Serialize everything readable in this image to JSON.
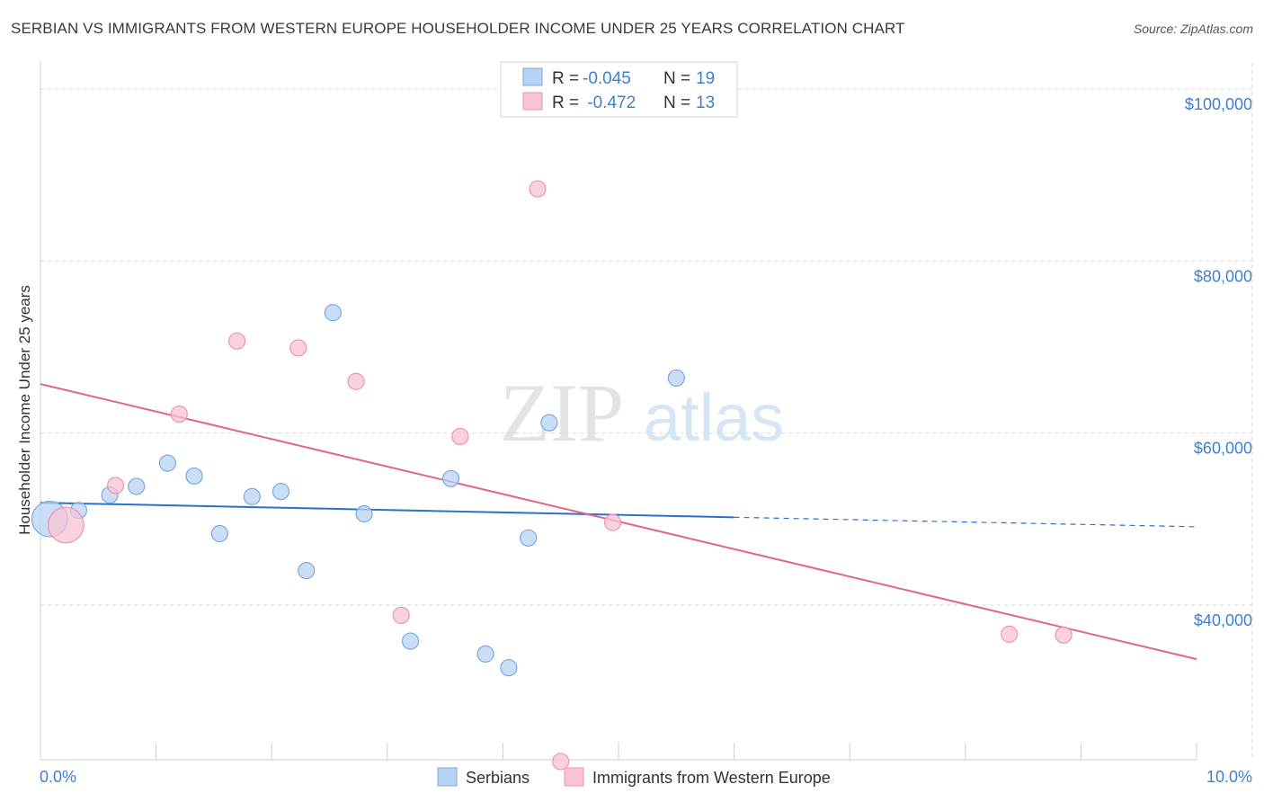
{
  "title": "SERBIAN VS IMMIGRANTS FROM WESTERN EUROPE HOUSEHOLDER INCOME UNDER 25 YEARS CORRELATION CHART",
  "source": "Source: ZipAtlas.com",
  "watermark": {
    "zip": "ZIP",
    "atlas": "atlas"
  },
  "colors": {
    "serbian_fill": "#b8d3f3",
    "serbian_stroke": "#7aa8e0",
    "serbian_line": "#2b6fd0",
    "imm_fill": "#f8c3d3",
    "imm_stroke": "#ec94b0",
    "imm_line": "#e0648e",
    "grid": "#d9d9d9",
    "tick_label": "#3f7fd0"
  },
  "legend": {
    "rows": [
      {
        "r_label": "R = ",
        "r_value": "-0.045",
        "n_label": "N = ",
        "n_value": "19"
      },
      {
        "r_label": "R = ",
        "r_value": " -0.472",
        "n_label": "N = ",
        "n_value": "13"
      }
    ]
  },
  "chart_data": {
    "type": "scatter",
    "title": "SERBIAN VS IMMIGRANTS FROM WESTERN EUROPE HOUSEHOLDER INCOME UNDER 25 YEARS CORRELATION CHART",
    "xlabel": "",
    "ylabel": "Householder Income Under 25 years",
    "xlim": [
      0,
      10
    ],
    "ylim": [
      22000,
      102000
    ],
    "x_tick_labels": [
      "0.0%",
      "10.0%"
    ],
    "y_ticks": [
      40000,
      60000,
      80000,
      100000
    ],
    "y_tick_labels": [
      "$40,000",
      "$60,000",
      "$80,000",
      "$100,000"
    ],
    "grid": true,
    "legend_position": "top-center",
    "series": [
      {
        "name": "Serbians",
        "r": -0.045,
        "n": 19,
        "points": [
          [
            0.08,
            50000,
            2.2
          ],
          [
            0.33,
            51000,
            1
          ],
          [
            0.6,
            52800,
            1
          ],
          [
            0.83,
            53800,
            1
          ],
          [
            1.1,
            56500,
            1
          ],
          [
            1.33,
            55000,
            1
          ],
          [
            1.55,
            48300,
            1
          ],
          [
            1.83,
            52600,
            1
          ],
          [
            2.08,
            53200,
            1
          ],
          [
            2.3,
            44000,
            1
          ],
          [
            2.53,
            74000,
            1
          ],
          [
            2.8,
            50600,
            1
          ],
          [
            3.2,
            35800,
            1
          ],
          [
            3.55,
            54700,
            1
          ],
          [
            3.85,
            34300,
            1
          ],
          [
            4.05,
            32700,
            1
          ],
          [
            4.22,
            47800,
            1
          ],
          [
            4.4,
            61200,
            1
          ],
          [
            5.5,
            66400,
            1
          ]
        ],
        "trend": {
          "x0": 0.0,
          "y0": 51900,
          "x1": 6.0,
          "y1": 50200,
          "x_dash_end": 10.0,
          "y_dash_end": 49100
        }
      },
      {
        "name": "Immigrants from Western Europe",
        "r": -0.472,
        "n": 13,
        "points": [
          [
            0.22,
            49300,
            2.2
          ],
          [
            0.65,
            53900,
            1
          ],
          [
            1.2,
            62200,
            1
          ],
          [
            1.7,
            70700,
            1
          ],
          [
            2.23,
            69900,
            1
          ],
          [
            2.73,
            66000,
            1
          ],
          [
            3.12,
            38800,
            1
          ],
          [
            3.63,
            59600,
            1
          ],
          [
            4.3,
            88400,
            1
          ],
          [
            4.5,
            21800,
            1
          ],
          [
            4.95,
            49600,
            1
          ],
          [
            8.38,
            36600,
            1
          ],
          [
            8.85,
            36500,
            1
          ]
        ],
        "trend": {
          "x0": 0.0,
          "y0": 65700,
          "x1": 10.0,
          "y1": 33700
        }
      }
    ]
  }
}
